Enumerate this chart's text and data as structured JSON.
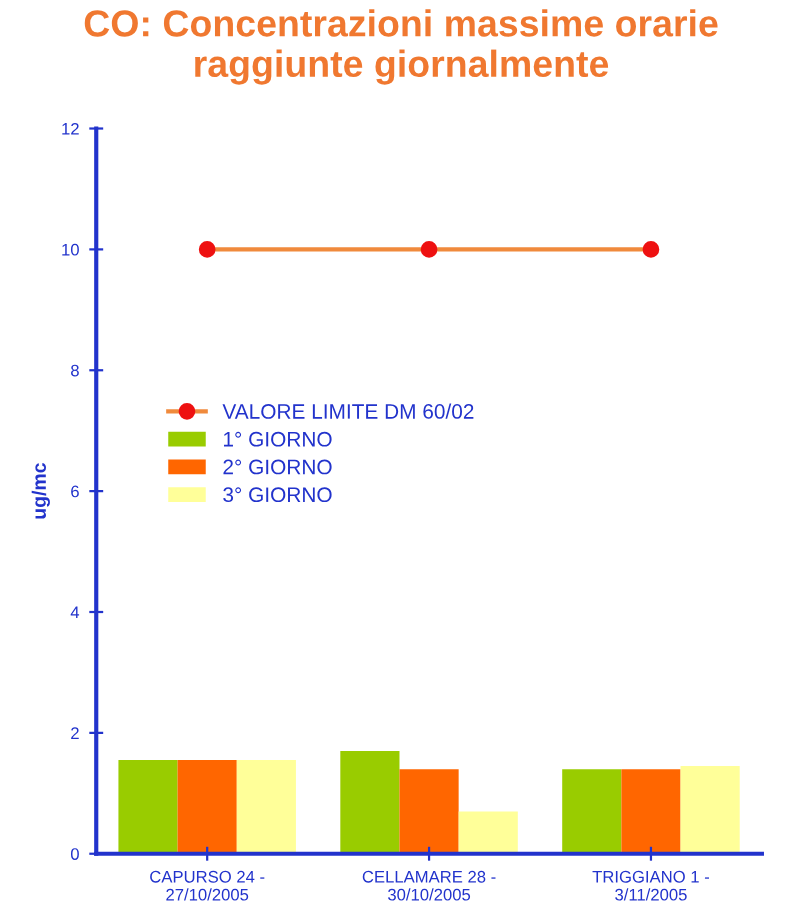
{
  "chart_data": {
    "type": "bar",
    "title": "CO: Concentrazioni massime orarie\nraggiunte giornalmente",
    "ylabel": "ug/mc",
    "categories": [
      "CAPURSO 24 -\n27/10/2005",
      "CELLAMARE 28 -\n30/10/2005",
      "TRIGGIANO 1 -\n3/11/2005"
    ],
    "series": [
      {
        "name": "VALORE LIMITE DM 60/02",
        "type": "line",
        "color": "#f08a3c",
        "marker": "circle",
        "values": [
          10,
          10,
          10
        ]
      },
      {
        "name": "1° GIORNO",
        "color": "#99cc00",
        "values": [
          1.55,
          1.7,
          1.4
        ]
      },
      {
        "name": "2° GIORNO",
        "color": "#ff6600",
        "values": [
          1.55,
          1.4,
          1.4
        ]
      },
      {
        "name": "3° GIORNO",
        "color": "#ffff99",
        "values": [
          1.55,
          0.7,
          1.45
        ]
      }
    ],
    "ylim": [
      0,
      12
    ],
    "yticks": [
      0,
      2,
      4,
      6,
      8,
      10,
      12
    ],
    "grid": false,
    "legend": "left"
  }
}
